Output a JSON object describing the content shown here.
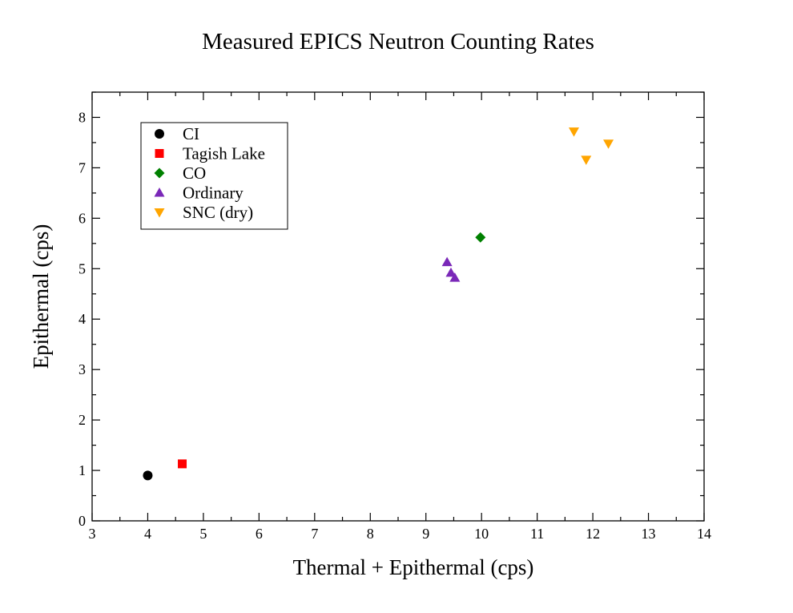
{
  "chart_data": {
    "type": "scatter",
    "title": "Measured EPICS Neutron Counting Rates",
    "xlabel": "Thermal + Epithermal (cps)",
    "ylabel": "Epithermal (cps)",
    "xlim": [
      3,
      14
    ],
    "ylim": [
      0,
      8.5
    ],
    "xticks": [
      "3",
      "4",
      "5",
      "6",
      "7",
      "8",
      "9",
      "10",
      "11",
      "12",
      "13",
      "14"
    ],
    "yticks": [
      "0",
      "1",
      "2",
      "3",
      "4",
      "5",
      "6",
      "7",
      "8"
    ],
    "legend_position": "top-left",
    "series": [
      {
        "name": "CI",
        "marker": "circle",
        "color": "#000000",
        "points": [
          {
            "x": 4.0,
            "y": 0.9
          }
        ]
      },
      {
        "name": "Tagish Lake",
        "marker": "square",
        "color": "#ff0000",
        "points": [
          {
            "x": 4.62,
            "y": 1.13
          }
        ]
      },
      {
        "name": "CO",
        "marker": "diamond",
        "color": "#008000",
        "points": [
          {
            "x": 9.98,
            "y": 5.62
          }
        ]
      },
      {
        "name": "Ordinary",
        "marker": "triangle-up",
        "color": "#7a28b8",
        "points": [
          {
            "x": 9.38,
            "y": 5.13
          },
          {
            "x": 9.45,
            "y": 4.92
          },
          {
            "x": 9.52,
            "y": 4.82
          }
        ]
      },
      {
        "name": "SNC (dry)",
        "marker": "triangle-down",
        "color": "#ffa500",
        "points": [
          {
            "x": 11.66,
            "y": 7.72
          },
          {
            "x": 11.88,
            "y": 7.16
          },
          {
            "x": 12.28,
            "y": 7.48
          }
        ]
      }
    ]
  }
}
